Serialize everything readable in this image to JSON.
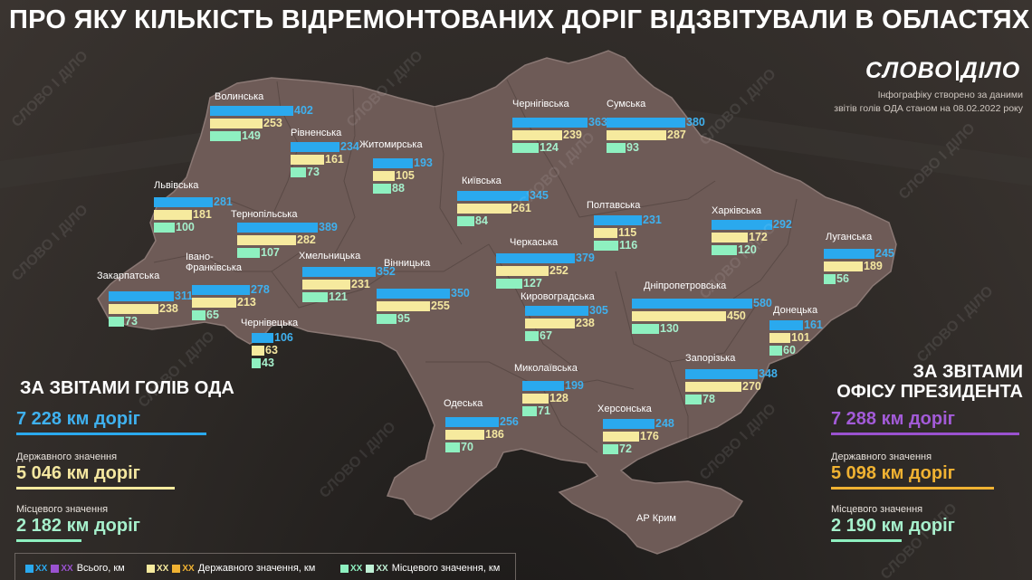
{
  "header": {
    "title": "ПРО ЯКУ КІЛЬКІСТЬ ВІДРЕМОНТОВАНИХ ДОРІГ ВІДЗВІТУВАЛИ В ОБЛАСТЯХ",
    "logo_part1": "СЛОВО",
    "logo_part2": "ДІЛО",
    "note_line1": "Інфографіку створено за даними",
    "note_line2": "звітів голів ОДА станом на 08.02.2022 року"
  },
  "watermark": "СЛОВО І ДІЛО",
  "crimea_label": "АР Крим",
  "left_block": {
    "title": "ЗА ЗВІТАМИ ГОЛІВ ОДА",
    "total": "7 228 км доріг",
    "state_label": "Державного значення",
    "state": "5 046 км доріг",
    "local_label": "Місцевого значення",
    "local": "2 182 км доріг"
  },
  "right_block": {
    "title_line1": "ЗА ЗВІТАМИ",
    "title_line2": "ОФІСУ ПРЕЗИДЕНТА",
    "total": "7 288 км доріг",
    "state_label": "Державного значення",
    "state": "5 098 км доріг",
    "local_label": "Місцевого значення",
    "local": "2 190 км доріг"
  },
  "legend": {
    "swatch_text": "XX",
    "total_label": "Всього, км",
    "state_label": "Державного значення, км",
    "local_label": "Місцевого значення, км"
  },
  "colors": {
    "total": "#2aa9ee",
    "state": "#f6ea9e",
    "local": "#8ef0c0",
    "total_op": "#9a52d0",
    "state_op": "#f0b232",
    "map_fill": "#6e5b57"
  },
  "chart_data": {
    "type": "bar",
    "title": "ПРО ЯКУ КІЛЬКІСТЬ ВІДРЕМОНТОВАНИХ ДОРІГ ВІДЗВІТУВАЛИ В ОБЛАСТЯХ",
    "categories": [
      "Волинська",
      "Рівненська",
      "Житомирська",
      "Чернігівська",
      "Сумська",
      "Київська",
      "Львівська",
      "Тернопільська",
      "Хмельницька",
      "Полтавська",
      "Харківська",
      "Луганська",
      "Закарпатська",
      "Івано-Франківська",
      "Вінницька",
      "Черкаська",
      "Кировоградська",
      "Дніпропетровська",
      "Донецька",
      "Чернівецька",
      "Миколаївська",
      "Запорізька",
      "Одеська",
      "Херсонська"
    ],
    "series": [
      {
        "name": "Всього, км",
        "values": [
          402,
          234,
          193,
          363,
          380,
          345,
          281,
          389,
          352,
          231,
          292,
          245,
          311,
          278,
          350,
          379,
          305,
          580,
          161,
          106,
          199,
          348,
          256,
          248
        ]
      },
      {
        "name": "Державного значення, км",
        "values": [
          253,
          161,
          105,
          239,
          287,
          261,
          181,
          282,
          231,
          115,
          172,
          189,
          238,
          213,
          255,
          252,
          238,
          450,
          101,
          63,
          128,
          270,
          186,
          176
        ]
      },
      {
        "name": "Місцевого значення, км",
        "values": [
          149,
          73,
          88,
          124,
          93,
          84,
          100,
          107,
          121,
          116,
          120,
          56,
          73,
          65,
          95,
          127,
          67,
          130,
          60,
          43,
          71,
          78,
          70,
          72
        ]
      }
    ]
  }
}
